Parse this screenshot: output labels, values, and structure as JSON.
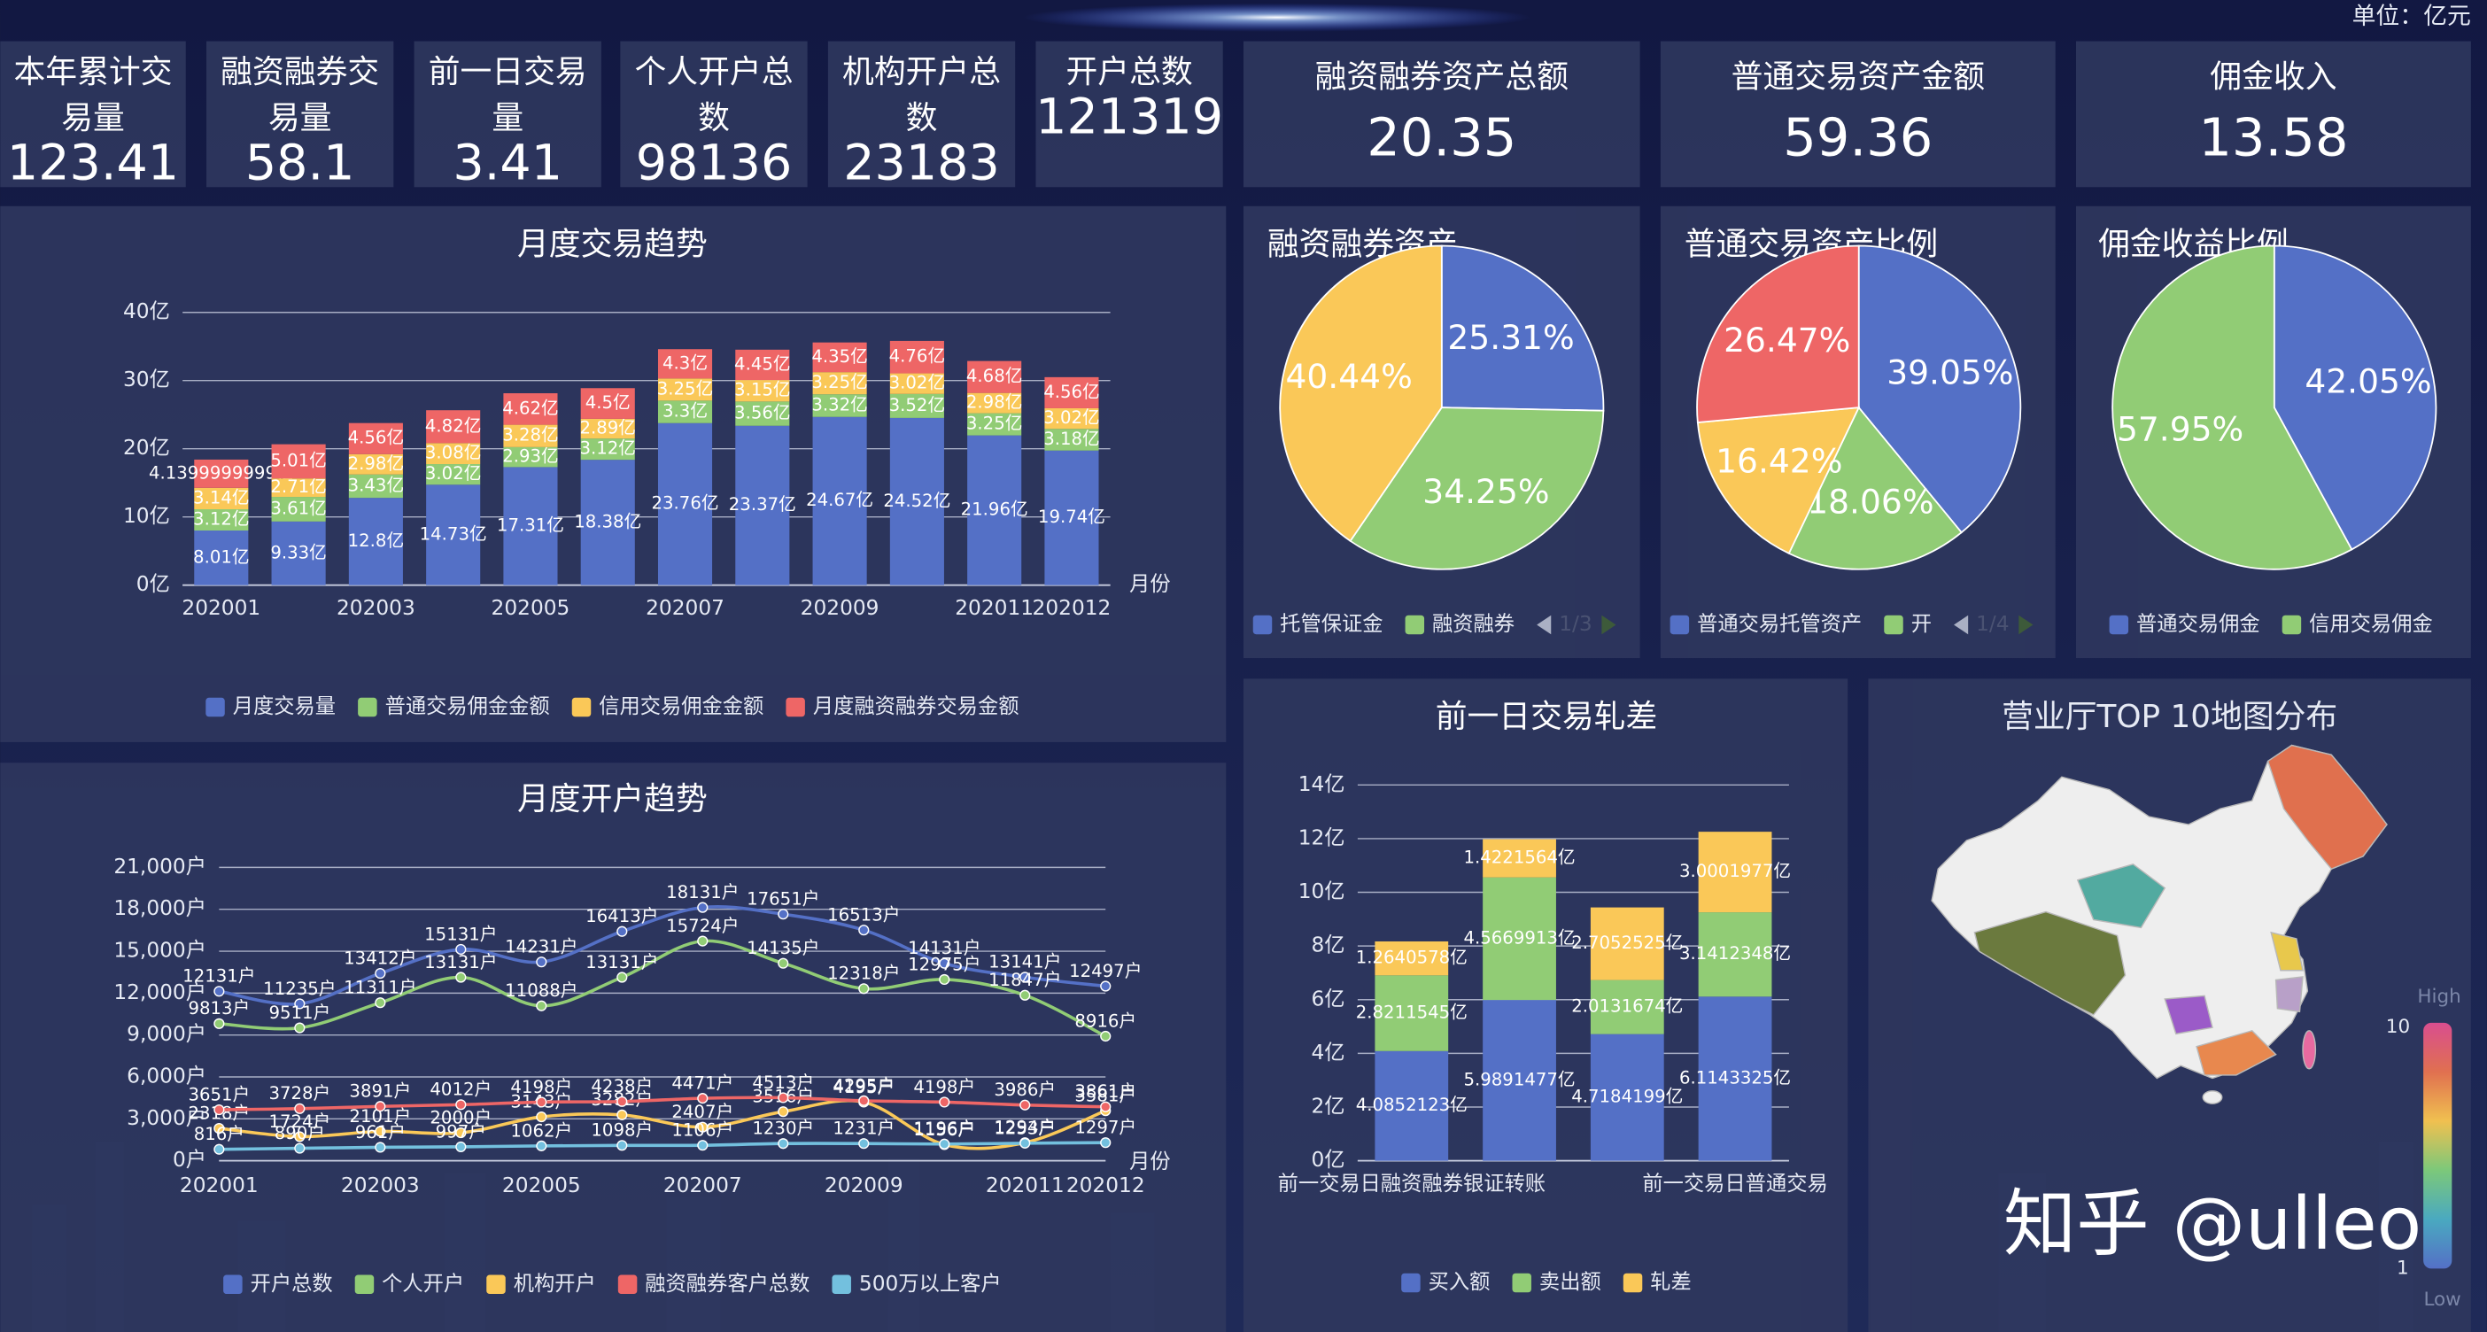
{
  "header": {
    "unit": "单位：亿元"
  },
  "kpis": [
    {
      "label": "本年累计交易量",
      "value": 123.41
    },
    {
      "label": "融资融券交易量",
      "value": 58.1
    },
    {
      "label": "前一日交易量",
      "value": 3.41
    },
    {
      "label": "个人开户总数",
      "value": 98136
    },
    {
      "label": "机构开户总数",
      "value": 23183
    },
    {
      "label": "开户总数",
      "value": 121319
    },
    {
      "label": "融资融券资产总额",
      "value": 20.35
    },
    {
      "label": "普通交易资产金额",
      "value": 59.36
    },
    {
      "label": "佣金收入",
      "value": 13.58
    }
  ],
  "chart_data": [
    {
      "type": "bar",
      "stacked": true,
      "title": "月度交易趋势",
      "x_label": "月份",
      "grid": true,
      "legend_position": "bottom",
      "categories": [
        "202001",
        null,
        "202003",
        null,
        "202005",
        null,
        "202007",
        null,
        "202009",
        null,
        "202011",
        "202012"
      ],
      "ylim": [
        0,
        40
      ],
      "yticks": [
        {
          "value": 0,
          "label": "0亿"
        },
        {
          "value": 10,
          "label": "10亿"
        },
        {
          "value": 20,
          "label": "20亿"
        },
        {
          "value": 30,
          "label": "30亿"
        },
        {
          "value": 40,
          "label": "40亿"
        }
      ],
      "series": [
        {
          "name": "月度交易量",
          "color": "#5470c6",
          "values": [
            8.01,
            9.33,
            12.8,
            14.73,
            17.31,
            18.38,
            23.76,
            23.37,
            24.67,
            24.52,
            21.96,
            19.74
          ],
          "value_labels": [
            "8.01亿",
            "9.33亿",
            "12.8亿",
            "14.73亿",
            "17.31亿",
            "18.38亿",
            "23.76亿",
            "23.37亿",
            "24.67亿",
            "24.52亿",
            "21.96亿",
            "19.74亿"
          ]
        },
        {
          "name": "普通交易佣金金额",
          "color": "#91cc75",
          "values": [
            3.12,
            3.61,
            3.43,
            3.02,
            2.93,
            3.12,
            3.3,
            3.56,
            3.32,
            3.52,
            3.25,
            3.18
          ],
          "value_labels": [
            "3.12亿",
            "3.61亿",
            "3.43亿",
            "3.02亿",
            "2.93亿",
            "3.12亿",
            "3.3亿",
            "3.56亿",
            "3.32亿",
            "3.52亿",
            "3.25亿",
            "3.18亿"
          ]
        },
        {
          "name": "信用交易佣金金额",
          "color": "#fac858",
          "values": [
            3.14,
            2.71,
            2.98,
            3.08,
            3.28,
            2.89,
            3.25,
            3.15,
            3.25,
            3.02,
            2.98,
            3.02
          ],
          "value_labels": [
            "3.14亿",
            "2.71亿",
            "2.98亿",
            "3.08亿",
            "3.28亿",
            "2.89亿",
            "3.25亿",
            "3.15亿",
            "3.25亿",
            "3.02亿",
            "2.98亿",
            "3.02亿"
          ]
        },
        {
          "name": "月度融资融券交易金额",
          "color": "#ee6666",
          "values": [
            4.1399999999,
            5.01,
            4.56,
            4.82,
            4.62,
            4.5,
            4.3,
            4.45,
            4.35,
            4.76,
            4.68,
            4.56
          ],
          "value_labels": [
            "4.1399999999亿",
            "5.01亿",
            "4.56亿",
            "4.82亿",
            "4.62亿",
            "4.5亿",
            "4.3亿",
            "4.45亿",
            "4.35亿",
            "4.76亿",
            "4.68亿",
            "4.56亿"
          ]
        }
      ]
    },
    {
      "type": "line",
      "title": "月度开户趋势",
      "x_label": "月份",
      "grid": true,
      "legend_position": "bottom",
      "categories": [
        "202001",
        null,
        "202003",
        null,
        "202005",
        null,
        "202007",
        null,
        "202009",
        null,
        "202011",
        "202012"
      ],
      "ylim": [
        0,
        21000
      ],
      "yticks": [
        {
          "value": 0,
          "label": "0户"
        },
        {
          "value": 3000,
          "label": "3,000户"
        },
        {
          "value": 6000,
          "label": "6,000户"
        },
        {
          "value": 9000,
          "label": "9,000户"
        },
        {
          "value": 12000,
          "label": "12,000户"
        },
        {
          "value": 15000,
          "label": "15,000户"
        },
        {
          "value": 18000,
          "label": "18,000户"
        },
        {
          "value": 21000,
          "label": "21,000户"
        }
      ],
      "series": [
        {
          "name": "开户总数",
          "color": "#5470c6",
          "values": [
            12131,
            11235,
            13412,
            15131,
            14231,
            16413,
            18131,
            17651,
            16513,
            14131,
            13141,
            12497
          ],
          "value_labels": [
            "12131户",
            "11235户",
            "13412户",
            "15131户",
            "14231户",
            "16413户",
            "18131户",
            "17651户",
            "16513户",
            "14131户",
            "13141户",
            "12497户"
          ]
        },
        {
          "name": "个人开户",
          "color": "#91cc75",
          "values": [
            9813,
            9511,
            11311,
            13131,
            11088,
            13131,
            15724,
            14135,
            12318,
            12975,
            11847,
            8916
          ],
          "value_labels": [
            "9813户",
            "9511户",
            "11311户",
            "13131户",
            "11088户",
            "13131户",
            "15724户",
            "14135户",
            "12318户",
            "12975户",
            "11847户",
            "8916户"
          ]
        },
        {
          "name": "机构开户",
          "color": "#fac858",
          "values": [
            2318,
            1724,
            2101,
            2000,
            3143,
            3282,
            2407,
            3516,
            4195,
            1156,
            1294,
            3581
          ],
          "value_labels": [
            "2318户",
            "1724户",
            "2101户",
            "2000户",
            "3143户",
            "3282户",
            "2407户",
            "3516户",
            "4195户",
            "1156户",
            "1294户",
            "3581户"
          ]
        },
        {
          "name": "融资融券客户总数",
          "color": "#ee6666",
          "values": [
            3651,
            3728,
            3891,
            4012,
            4198,
            4238,
            4471,
            4513,
            4295,
            4198,
            3986,
            3861
          ],
          "value_labels": [
            "3651户",
            "3728户",
            "3891户",
            "4012户",
            "4198户",
            "4238户",
            "4471户",
            "4513户",
            "4295户",
            "4198户",
            "3986户",
            "3861户"
          ]
        },
        {
          "name": "500万以上客户",
          "color": "#73c0de",
          "values": [
            816,
            890,
            961,
            997,
            1062,
            1098,
            1106,
            1230,
            1231,
            1196,
            1253,
            1297
          ],
          "value_labels": [
            "816户",
            "890户",
            "961户",
            "997户",
            "1062户",
            "1098户",
            "1106户",
            "1230户",
            "1231户",
            "1196户",
            "1253户",
            "1297户"
          ]
        }
      ]
    },
    {
      "type": "pie",
      "title": "融资融券资产",
      "legend_page": "1/3",
      "categories": [
        "托管保证金",
        "融资融券",
        null
      ],
      "values": [
        25.31,
        34.25,
        40.44
      ],
      "value_labels": [
        "25.31%",
        "34.25%",
        "40.44%"
      ],
      "colors": [
        "#5470c6",
        "#91cc75",
        "#fac858"
      ]
    },
    {
      "type": "pie",
      "title": "普通交易资产比例",
      "legend_page": "1/4",
      "categories": [
        "普通交易托管资产",
        "开",
        null,
        null
      ],
      "values": [
        39.05,
        18.06,
        16.42,
        26.47
      ],
      "value_labels": [
        "39.05%",
        "18.06%",
        "16.42%",
        "26.47%"
      ],
      "colors": [
        "#5470c6",
        "#91cc75",
        "#fac858",
        "#ee6666"
      ]
    },
    {
      "type": "pie",
      "title": "佣金收益比例",
      "categories": [
        "普通交易佣金",
        "信用交易佣金"
      ],
      "values": [
        42.05,
        57.95
      ],
      "value_labels": [
        "42.05%",
        "57.95%"
      ],
      "colors": [
        "#5470c6",
        "#91cc75"
      ]
    },
    {
      "type": "bar",
      "stacked": true,
      "title": "前一日交易轧差",
      "grid": true,
      "legend_position": "bottom",
      "categories": [
        "前一交易日融资融券银证转账",
        null,
        null,
        "前一交易日普通交易"
      ],
      "ylim": [
        0,
        14
      ],
      "yticks": [
        {
          "value": 0,
          "label": "0亿"
        },
        {
          "value": 2,
          "label": "2亿"
        },
        {
          "value": 4,
          "label": "4亿"
        },
        {
          "value": 6,
          "label": "6亿"
        },
        {
          "value": 8,
          "label": "8亿"
        },
        {
          "value": 10,
          "label": "10亿"
        },
        {
          "value": 12,
          "label": "12亿"
        },
        {
          "value": 14,
          "label": "14亿"
        }
      ],
      "series": [
        {
          "name": "买入额",
          "color": "#5470c6",
          "values": [
            4.0852123,
            5.9891477,
            4.7184199,
            6.1143325
          ],
          "value_labels": [
            "4.0852123亿",
            "5.9891477亿",
            "4.7184199亿",
            "6.1143325亿"
          ]
        },
        {
          "name": "卖出额",
          "color": "#91cc75",
          "values": [
            2.8211545,
            4.5669913,
            2.0131674,
            3.1412348
          ],
          "value_labels": [
            "2.8211545亿",
            "4.5669913亿",
            "2.0131674亿",
            "3.1412348亿"
          ]
        },
        {
          "name": "轧差",
          "color": "#fac858",
          "values": [
            1.2640578,
            1.4221564,
            2.7052525,
            3.0001977
          ],
          "value_labels": [
            "1.2640578亿",
            "1.4221564亿",
            "2.7052525亿",
            "3.0001977亿"
          ]
        }
      ]
    }
  ],
  "map": {
    "title": "营业厅TOP 10地图分布",
    "scale_high": "High",
    "scale_low": "Low",
    "scale_max": 10,
    "scale_min": 1
  },
  "watermark": "知乎 @ulleo"
}
